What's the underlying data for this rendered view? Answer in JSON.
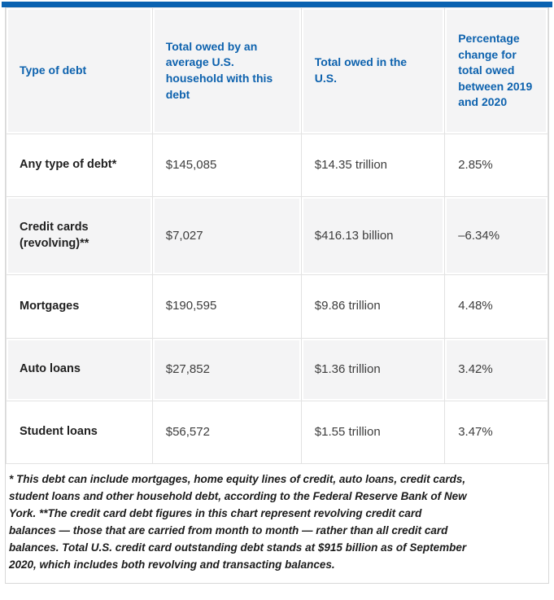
{
  "meta": {
    "accent_blue": "#0b63b1",
    "header_text_blue": "#0d62ae",
    "shaded_cell_gray": "#f4f4f5",
    "border_gray": "#d8d8d8",
    "body_text": "#3d3d3d"
  },
  "chart_data": {
    "type": "table",
    "columns": [
      "Type of debt",
      "Total owed by an average U.S. household with this debt",
      "Total owed in the U.S.",
      "Percentage change for total owed between 2019 and 2020"
    ],
    "rows": [
      {
        "type": "Any type of debt*",
        "avg_household": "$145,085",
        "total_us": "$14.35 trillion",
        "pct_change": "2.85%"
      },
      {
        "type": "Credit cards (revolving)**",
        "avg_household": "$7,027",
        "total_us": "$416.13 billion",
        "pct_change": "–6.34%"
      },
      {
        "type": "Mortgages",
        "avg_household": "$190,595",
        "total_us": "$9.86 trillion",
        "pct_change": "4.48%"
      },
      {
        "type": "Auto loans",
        "avg_household": "$27,852",
        "total_us": "$1.36 trillion",
        "pct_change": "3.42%"
      },
      {
        "type": "Student loans",
        "avg_household": "$56,572",
        "total_us": "$1.55 trillion",
        "pct_change": "3.47%"
      }
    ],
    "footnote": "* This debt can include mortgages, home equity lines of credit, auto loans, credit cards, student loans and other household debt, according to the Federal Reserve Bank of New York. **The credit card debt figures in this chart represent revolving credit card balances — those that are carried from month to month — rather than all credit card balances. Total U.S. credit card outstanding debt stands at $915 billion as of September 2020, which includes both revolving and transacting balances."
  }
}
